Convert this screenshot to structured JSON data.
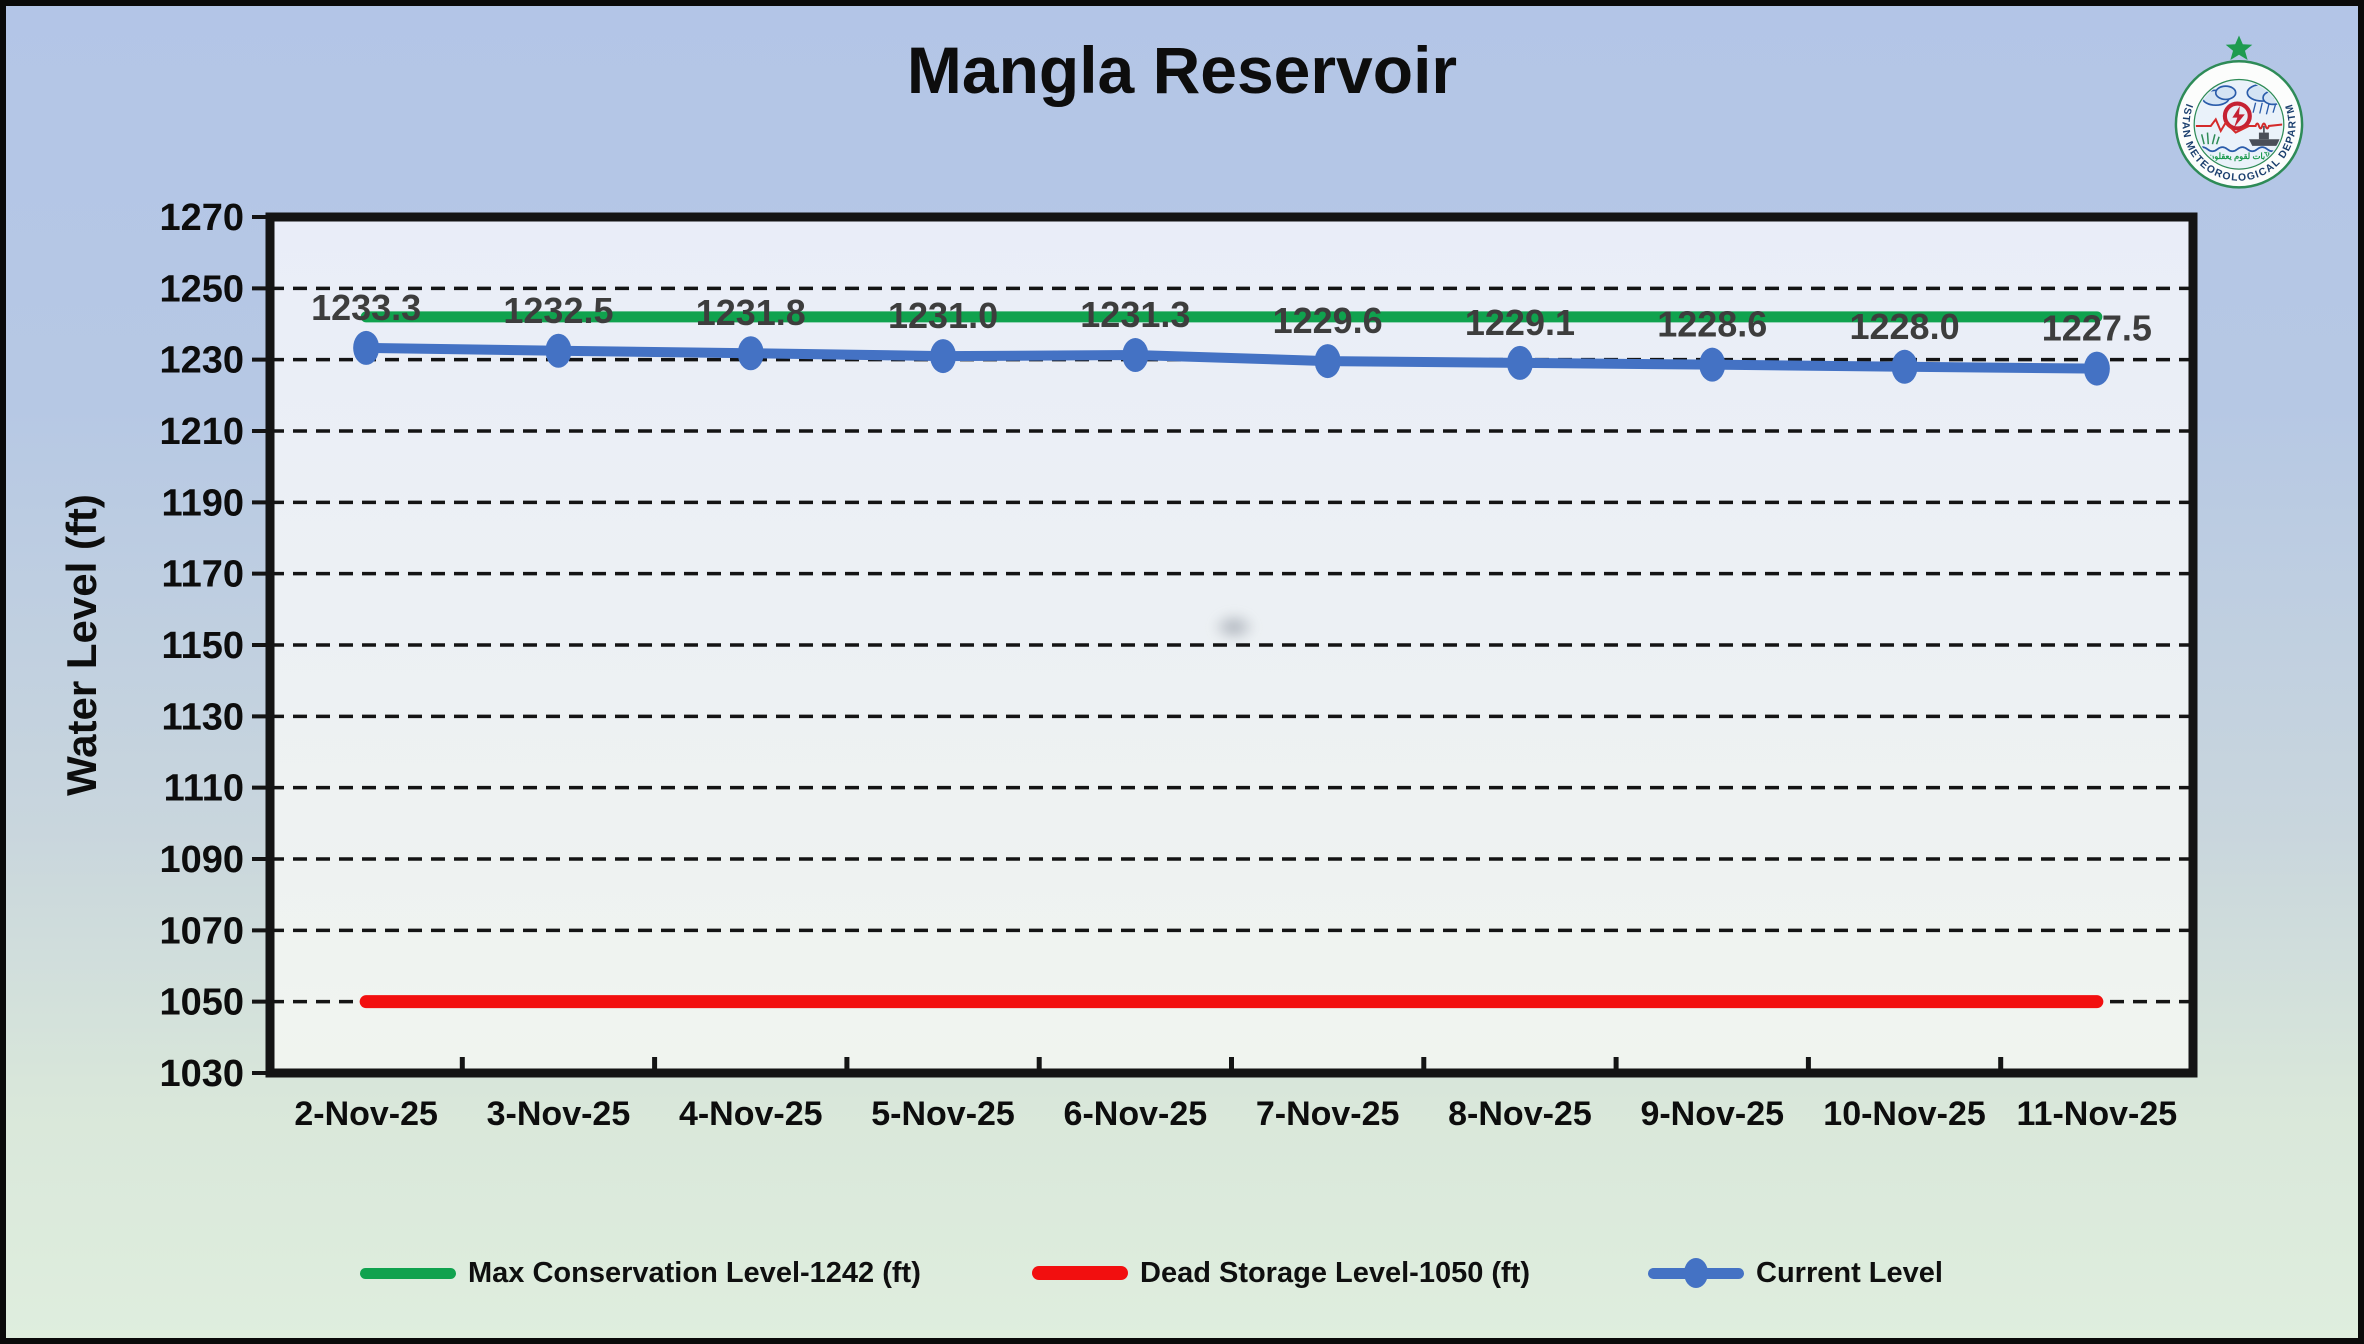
{
  "title": "Mangla Reservoir",
  "logo": {
    "name": "Pakistan Meteorological Department logo",
    "ring_text": "PAKISTAN METEOROLOGICAL DEPARTMENT",
    "arabic_text": "لآيات لقوم يعقلون"
  },
  "chart_data": {
    "type": "line",
    "title": "Mangla Reservoir",
    "xlabel": "",
    "ylabel": "Water Level (ft)",
    "ylim": [
      1030,
      1270
    ],
    "yticks": [
      1030,
      1050,
      1070,
      1090,
      1110,
      1130,
      1150,
      1170,
      1190,
      1210,
      1230,
      1250,
      1270
    ],
    "grid": "horizontal-dashed",
    "legend_position": "bottom",
    "categories": [
      "2-Nov-25",
      "3-Nov-25",
      "4-Nov-25",
      "5-Nov-25",
      "6-Nov-25",
      "7-Nov-25",
      "8-Nov-25",
      "9-Nov-25",
      "10-Nov-25",
      "11-Nov-25"
    ],
    "series": [
      {
        "name": "Max Conservation Level-1242 (ft)",
        "color": "#10a24e",
        "style": "constant-line",
        "value": 1242,
        "values": [
          1242,
          1242,
          1242,
          1242,
          1242,
          1242,
          1242,
          1242,
          1242,
          1242
        ]
      },
      {
        "name": "Dead Storage Level-1050 (ft)",
        "color": "#f20f0f",
        "style": "constant-line",
        "value": 1050,
        "values": [
          1050,
          1050,
          1050,
          1050,
          1050,
          1050,
          1050,
          1050,
          1050,
          1050
        ]
      },
      {
        "name": "Current Level",
        "color": "#4472c4",
        "style": "line-with-markers",
        "data_labels": true,
        "values": [
          1233.3,
          1232.5,
          1231.8,
          1231.0,
          1231.3,
          1229.6,
          1229.1,
          1228.6,
          1228.0,
          1227.5
        ]
      }
    ]
  },
  "colors": {
    "background_top": "#b3c5e7",
    "background_bottom": "#dfeede",
    "plot_fill_top": "#e9edf8",
    "plot_fill_bottom": "#f0f4ef",
    "axis_and_grid": "#141414",
    "title_text": "#0d0d0d",
    "data_label_text": "#3d3d3d",
    "logo_ring_text": "#1b3f6e",
    "logo_green": "#1e9b50"
  }
}
